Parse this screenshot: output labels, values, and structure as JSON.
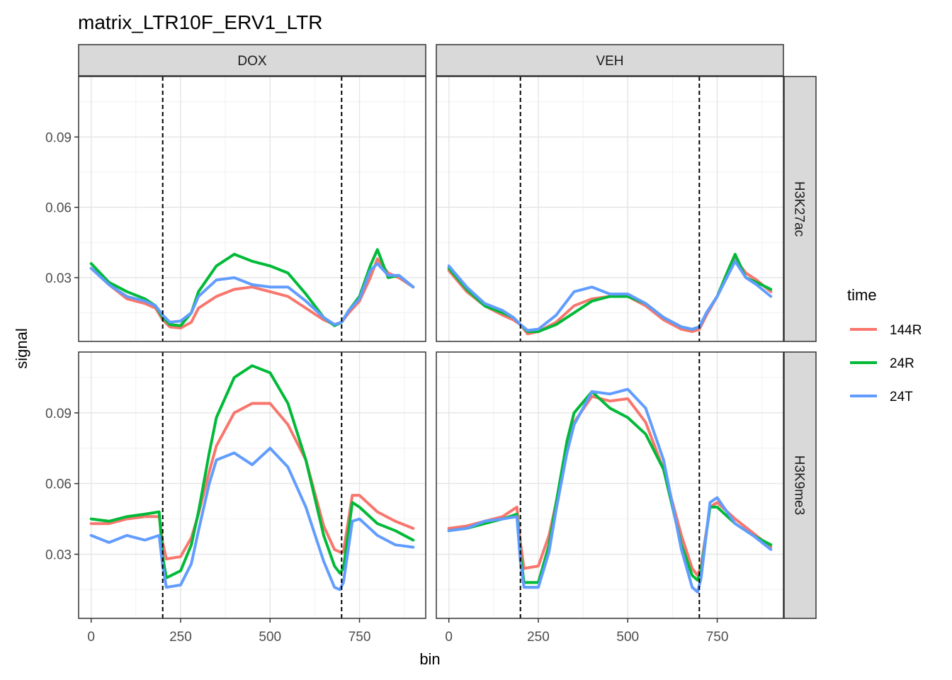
{
  "chart_data": {
    "type": "line",
    "title": "matrix_LTR10F_ERV1_LTR",
    "xlabel": "bin",
    "ylabel": "signal",
    "xlim": [
      -35,
      935
    ],
    "ylim": [
      0.0028,
      0.1158
    ],
    "x_ticks": [
      0,
      250,
      500,
      750
    ],
    "y_ticks": [
      0.03,
      0.06,
      0.09
    ],
    "grid": true,
    "vlines": [
      200,
      700
    ],
    "columns": [
      "DOX",
      "VEH"
    ],
    "rows": [
      "H3K27ac",
      "H3K9me3"
    ],
    "legend": {
      "title": "time",
      "placement": "right",
      "entries": [
        "144R",
        "24R",
        "24T"
      ]
    },
    "colors": {
      "144R": "#F8766D",
      "24R": "#00BA38",
      "24T": "#619CFF"
    },
    "panels": [
      {
        "column": "DOX",
        "row": "H3K27ac",
        "series": [
          {
            "name": "144R",
            "x": [
              0,
              50,
              100,
              150,
              180,
              200,
              220,
              250,
              280,
              300,
              350,
              400,
              450,
              500,
              550,
              600,
              650,
              680,
              700,
              720,
              750,
              780,
              800,
              830,
              860,
              900
            ],
            "y": [
              0.034,
              0.027,
              0.021,
              0.019,
              0.017,
              0.012,
              0.009,
              0.0085,
              0.011,
              0.017,
              0.022,
              0.025,
              0.026,
              0.024,
              0.022,
              0.017,
              0.012,
              0.01,
              0.011,
              0.015,
              0.02,
              0.03,
              0.038,
              0.032,
              0.03,
              0.026
            ]
          },
          {
            "name": "24R",
            "x": [
              0,
              50,
              100,
              150,
              180,
              200,
              220,
              250,
              280,
              300,
              350,
              400,
              450,
              500,
              550,
              600,
              650,
              680,
              700,
              720,
              750,
              780,
              800,
              830,
              860,
              900
            ],
            "y": [
              0.036,
              0.028,
              0.024,
              0.021,
              0.018,
              0.013,
              0.01,
              0.0095,
              0.015,
              0.024,
              0.035,
              0.04,
              0.037,
              0.035,
              0.032,
              0.023,
              0.013,
              0.0095,
              0.011,
              0.016,
              0.022,
              0.035,
              0.042,
              0.03,
              0.031,
              0.026
            ]
          },
          {
            "name": "24T",
            "x": [
              0,
              50,
              100,
              150,
              180,
              200,
              220,
              250,
              280,
              300,
              350,
              400,
              450,
              500,
              550,
              600,
              650,
              680,
              700,
              720,
              750,
              780,
              800,
              830,
              860,
              900
            ],
            "y": [
              0.034,
              0.027,
              0.022,
              0.02,
              0.018,
              0.014,
              0.011,
              0.0115,
              0.015,
              0.022,
              0.029,
              0.03,
              0.027,
              0.026,
              0.026,
              0.02,
              0.013,
              0.01,
              0.011,
              0.016,
              0.021,
              0.033,
              0.036,
              0.031,
              0.031,
              0.026
            ]
          }
        ]
      },
      {
        "column": "VEH",
        "row": "H3K27ac",
        "series": [
          {
            "name": "144R",
            "x": [
              0,
              50,
              100,
              150,
              180,
              200,
              220,
              250,
              300,
              350,
              400,
              450,
              500,
              550,
              600,
              650,
              680,
              700,
              720,
              750,
              780,
              800,
              830,
              860,
              900
            ],
            "y": [
              0.033,
              0.024,
              0.018,
              0.014,
              0.012,
              0.01,
              0.006,
              0.007,
              0.011,
              0.018,
              0.021,
              0.022,
              0.022,
              0.018,
              0.012,
              0.008,
              0.007,
              0.008,
              0.014,
              0.022,
              0.032,
              0.038,
              0.032,
              0.029,
              0.024
            ]
          },
          {
            "name": "24R",
            "x": [
              0,
              50,
              100,
              150,
              180,
              200,
              220,
              250,
              300,
              350,
              400,
              450,
              500,
              550,
              600,
              650,
              680,
              700,
              720,
              750,
              780,
              800,
              830,
              860,
              900
            ],
            "y": [
              0.034,
              0.025,
              0.018,
              0.015,
              0.013,
              0.01,
              0.007,
              0.007,
              0.01,
              0.015,
              0.02,
              0.022,
              0.022,
              0.019,
              0.013,
              0.009,
              0.008,
              0.009,
              0.015,
              0.022,
              0.033,
              0.04,
              0.03,
              0.028,
              0.025
            ]
          },
          {
            "name": "24T",
            "x": [
              0,
              50,
              100,
              150,
              180,
              200,
              220,
              250,
              300,
              350,
              400,
              450,
              500,
              550,
              600,
              650,
              680,
              700,
              720,
              750,
              780,
              800,
              830,
              860,
              900
            ],
            "y": [
              0.035,
              0.026,
              0.019,
              0.016,
              0.013,
              0.01,
              0.0075,
              0.008,
              0.014,
              0.024,
              0.026,
              0.023,
              0.023,
              0.019,
              0.013,
              0.009,
              0.008,
              0.009,
              0.015,
              0.022,
              0.031,
              0.037,
              0.03,
              0.027,
              0.022
            ]
          }
        ]
      },
      {
        "column": "DOX",
        "row": "H3K9me3",
        "series": [
          {
            "name": "144R",
            "x": [
              0,
              50,
              100,
              150,
              190,
              200,
              210,
              250,
              280,
              300,
              330,
              350,
              400,
              450,
              500,
              550,
              600,
              650,
              680,
              695,
              705,
              730,
              750,
              800,
              850,
              900
            ],
            "y": [
              0.043,
              0.043,
              0.045,
              0.046,
              0.046,
              0.035,
              0.028,
              0.029,
              0.037,
              0.047,
              0.065,
              0.076,
              0.09,
              0.094,
              0.094,
              0.085,
              0.07,
              0.042,
              0.032,
              0.031,
              0.031,
              0.055,
              0.055,
              0.048,
              0.044,
              0.041
            ]
          },
          {
            "name": "24R",
            "x": [
              0,
              50,
              100,
              150,
              190,
              200,
              210,
              250,
              280,
              300,
              330,
              350,
              400,
              450,
              500,
              550,
              600,
              650,
              680,
              695,
              705,
              730,
              750,
              800,
              850,
              900
            ],
            "y": [
              0.045,
              0.044,
              0.046,
              0.047,
              0.048,
              0.029,
              0.02,
              0.023,
              0.034,
              0.048,
              0.073,
              0.088,
              0.105,
              0.11,
              0.107,
              0.094,
              0.07,
              0.038,
              0.025,
              0.022,
              0.024,
              0.052,
              0.05,
              0.043,
              0.04,
              0.036
            ]
          },
          {
            "name": "24T",
            "x": [
              0,
              50,
              100,
              150,
              190,
              200,
              210,
              250,
              280,
              300,
              330,
              350,
              400,
              450,
              500,
              550,
              600,
              650,
              680,
              695,
              705,
              730,
              750,
              800,
              850,
              900
            ],
            "y": [
              0.038,
              0.035,
              0.038,
              0.036,
              0.038,
              0.025,
              0.016,
              0.017,
              0.026,
              0.04,
              0.06,
              0.07,
              0.073,
              0.068,
              0.075,
              0.067,
              0.05,
              0.027,
              0.016,
              0.015,
              0.018,
              0.044,
              0.045,
              0.038,
              0.034,
              0.033
            ]
          }
        ]
      },
      {
        "column": "VEH",
        "row": "H3K9me3",
        "series": [
          {
            "name": "144R",
            "x": [
              0,
              50,
              100,
              150,
              190,
              200,
              210,
              250,
              280,
              300,
              330,
              350,
              400,
              450,
              500,
              550,
              600,
              650,
              680,
              695,
              705,
              730,
              750,
              800,
              850,
              900
            ],
            "y": [
              0.041,
              0.042,
              0.044,
              0.046,
              0.05,
              0.035,
              0.024,
              0.025,
              0.038,
              0.052,
              0.074,
              0.086,
              0.097,
              0.095,
              0.096,
              0.086,
              0.066,
              0.038,
              0.024,
              0.021,
              0.025,
              0.05,
              0.052,
              0.045,
              0.039,
              0.033
            ]
          },
          {
            "name": "24R",
            "x": [
              0,
              50,
              100,
              150,
              190,
              200,
              210,
              250,
              280,
              300,
              330,
              350,
              400,
              450,
              500,
              550,
              600,
              650,
              680,
              695,
              705,
              730,
              750,
              800,
              850,
              900
            ],
            "y": [
              0.04,
              0.041,
              0.043,
              0.045,
              0.047,
              0.03,
              0.018,
              0.018,
              0.034,
              0.052,
              0.078,
              0.09,
              0.099,
              0.092,
              0.088,
              0.081,
              0.066,
              0.034,
              0.021,
              0.019,
              0.023,
              0.05,
              0.05,
              0.043,
              0.038,
              0.034
            ]
          },
          {
            "name": "24T",
            "x": [
              0,
              50,
              100,
              150,
              190,
              200,
              210,
              250,
              280,
              300,
              330,
              350,
              400,
              450,
              500,
              550,
              600,
              650,
              680,
              695,
              705,
              730,
              750,
              800,
              850,
              900
            ],
            "y": [
              0.04,
              0.041,
              0.044,
              0.045,
              0.046,
              0.027,
              0.016,
              0.016,
              0.031,
              0.049,
              0.073,
              0.085,
              0.099,
              0.098,
              0.1,
              0.092,
              0.07,
              0.032,
              0.016,
              0.014,
              0.02,
              0.052,
              0.054,
              0.043,
              0.038,
              0.032
            ]
          }
        ]
      }
    ]
  }
}
